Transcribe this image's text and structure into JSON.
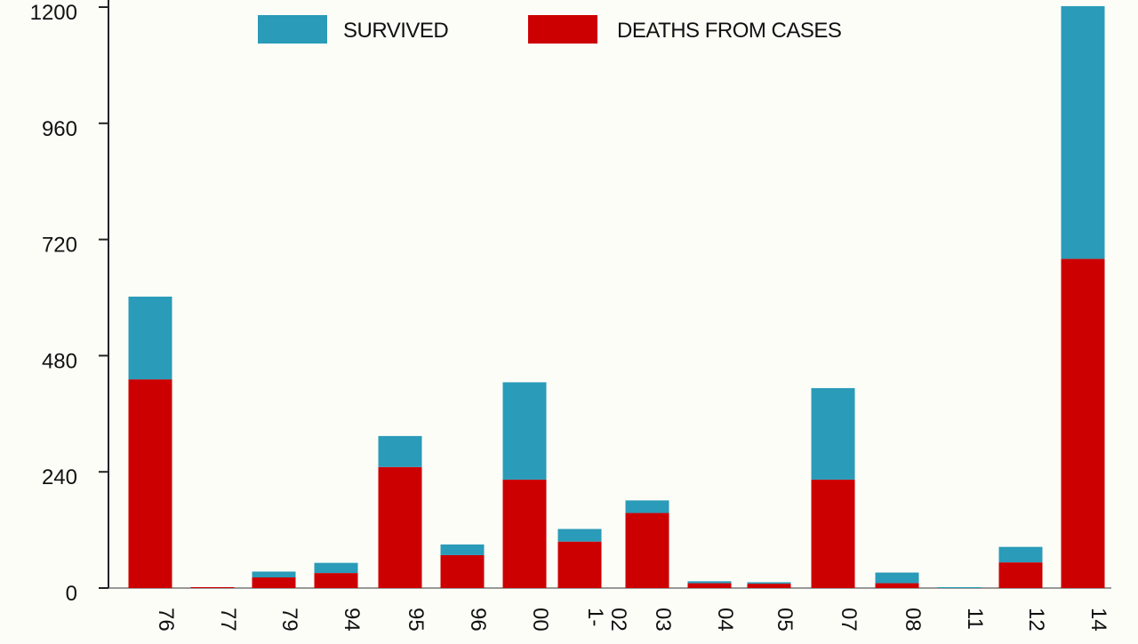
{
  "chart_data": {
    "type": "bar",
    "stacked": true,
    "title": "",
    "xlabel": "",
    "ylabel": "",
    "ylim": [
      0,
      1200
    ],
    "yticks": [
      0,
      240,
      480,
      720,
      960,
      1200
    ],
    "categories": [
      "76",
      "77",
      "79",
      "94",
      "95",
      "96",
      "00",
      "1-\n02",
      "03",
      "04",
      "05",
      "07",
      "08",
      "11",
      "12",
      "14"
    ],
    "series": [
      {
        "name": "DEATHS FROM CASES",
        "color": "#cc0000",
        "values": [
          431,
          1,
          22,
          31,
          250,
          68,
          224,
          96,
          155,
          10,
          9,
          224,
          10,
          0,
          53,
          680
        ]
      },
      {
        "name": "SURVIVED",
        "color": "#2a9bb8",
        "values": [
          171,
          0,
          12,
          21,
          64,
          22,
          201,
          26,
          26,
          4,
          3,
          189,
          22,
          1,
          32,
          522
        ]
      }
    ],
    "legend": {
      "position": "top-center",
      "order": [
        "SURVIVED",
        "DEATHS FROM CASES"
      ]
    },
    "grid": false
  }
}
